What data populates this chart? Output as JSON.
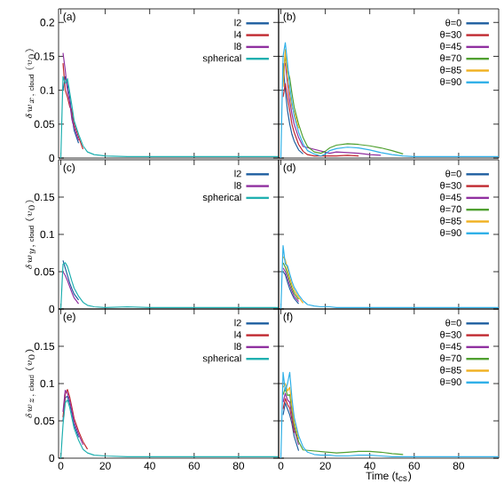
{
  "chart_data": [
    {
      "type": "line",
      "annotations": [
        "(a)"
      ],
      "ylabel": "\\delta w_{x,\\,\\mathrm{cloud}}\\ (v_{0})",
      "legend": "top right",
      "line_style": "solid",
      "tick_labels": "y",
      "xlim": [
        -1,
        98
      ],
      "ylim": [
        0,
        0.22
      ],
      "xticks": [
        0,
        20,
        40,
        60,
        80
      ],
      "yticks": [
        0,
        0.05,
        0.1,
        0.15,
        0.2
      ],
      "x": [
        0,
        1,
        2,
        3,
        4,
        5,
        6,
        8,
        10,
        12,
        15,
        20,
        30,
        40,
        50,
        60,
        70,
        80,
        90,
        98
      ],
      "series": [
        {
          "name": "l2",
          "color": "#1f5fa0",
          "values": [
            null,
            0.1,
            0.12,
            0.108,
            0.09,
            0.063,
            0.041,
            0.022,
            null,
            null,
            null,
            null,
            null,
            null,
            null,
            null,
            null,
            null,
            null,
            null
          ]
        },
        {
          "name": "l4",
          "color": "#c0282f",
          "values": [
            null,
            0.14,
            0.1,
            0.09,
            0.076,
            0.07,
            0.05,
            0.031,
            0.013,
            null,
            null,
            null,
            null,
            null,
            null,
            null,
            null,
            null,
            null,
            null
          ]
        },
        {
          "name": "l8",
          "color": "#9030a0",
          "values": [
            null,
            0.155,
            0.13,
            0.099,
            0.083,
            0.057,
            0.045,
            0.026,
            null,
            null,
            null,
            null,
            null,
            null,
            null,
            null,
            null,
            null,
            null,
            null
          ]
        },
        {
          "name": "spherical",
          "color": "#20b0b0",
          "values": [
            0,
            0.12,
            0.11,
            0.117,
            0.097,
            0.077,
            0.055,
            0.035,
            0.018,
            0.009,
            0.005,
            0.003,
            0.002,
            0.002,
            0.002,
            0.002,
            0.002,
            0.002,
            0.002,
            0.002
          ]
        }
      ]
    },
    {
      "type": "line",
      "annotations": [
        "(b)"
      ],
      "legend": "top right",
      "line_style": "solid",
      "tick_labels": false,
      "xlim": [
        -1,
        98
      ],
      "ylim": [
        0,
        0.22
      ],
      "xticks": [
        0,
        20,
        40,
        60,
        80
      ],
      "yticks": [
        0,
        0.05,
        0.1,
        0.15,
        0.2
      ],
      "x": [
        0,
        1,
        2,
        3,
        4,
        5,
        6,
        8,
        10,
        12,
        15,
        18,
        20,
        22,
        25,
        30,
        35,
        40,
        45,
        50,
        55,
        60,
        70,
        80,
        90,
        98
      ],
      "series": [
        {
          "name": "θ=0",
          "color": "#1f5fa0",
          "values": [
            null,
            0.14,
            0.1,
            0.07,
            0.05,
            0.035,
            0.025,
            0.012,
            0.006,
            null,
            null,
            null,
            null,
            null,
            null,
            null,
            null,
            null,
            null,
            null,
            null,
            null,
            null,
            null,
            null,
            null
          ]
        },
        {
          "name": "θ=30",
          "color": "#c0282f",
          "values": [
            null,
            0.09,
            0.11,
            0.09,
            0.07,
            0.05,
            0.038,
            0.02,
            0.01,
            0.005,
            0.003,
            null,
            null,
            null,
            0.003,
            0.004,
            0.003,
            null,
            null,
            null,
            null,
            null,
            null,
            null,
            null,
            null
          ]
        },
        {
          "name": "θ=45",
          "color": "#9030a0",
          "values": [
            null,
            0.13,
            0.14,
            0.11,
            0.085,
            0.065,
            0.05,
            0.03,
            0.017,
            null,
            null,
            null,
            null,
            0.007,
            0.009,
            0.008,
            0.007,
            0.005,
            0.004,
            null,
            null,
            null,
            null,
            null,
            null,
            null
          ]
        },
        {
          "name": "θ=70",
          "color": "#50a030",
          "values": [
            null,
            0.12,
            0.15,
            0.13,
            0.118,
            0.095,
            0.075,
            0.05,
            0.03,
            0.017,
            0.009,
            0.007,
            0.01,
            0.015,
            0.019,
            0.021,
            0.02,
            0.018,
            0.015,
            0.011,
            0.006,
            null,
            null,
            null,
            null,
            null
          ]
        },
        {
          "name": "θ=85",
          "color": "#f0b020",
          "values": [
            null,
            0.105,
            0.16,
            0.12,
            0.095,
            0.075,
            0.068,
            0.044,
            null,
            null,
            null,
            null,
            null,
            null,
            null,
            null,
            null,
            null,
            null,
            null,
            null,
            null,
            null,
            null,
            null,
            null
          ]
        },
        {
          "name": "θ=90",
          "color": "#30b0e8",
          "values": [
            0,
            0.15,
            0.17,
            0.14,
            0.105,
            0.082,
            0.062,
            0.038,
            0.021,
            0.011,
            0.006,
            0.003,
            0.006,
            0.011,
            0.014,
            0.016,
            0.015,
            0.012,
            0.008,
            0.005,
            0.003,
            0.002,
            0.002,
            0.002,
            0.002,
            0.002
          ]
        }
      ]
    },
    {
      "type": "line",
      "annotations": [
        "(c)"
      ],
      "ylabel": "\\delta w_{y,\\,\\mathrm{cloud}}\\ (v_{0})",
      "legend": "top right",
      "line_style": "solid",
      "tick_labels": "y",
      "xlim": [
        -1,
        98
      ],
      "ylim": [
        0,
        0.2
      ],
      "xticks": [
        0,
        20,
        40,
        60,
        80
      ],
      "yticks": [
        0,
        0.05,
        0.1,
        0.15
      ],
      "x": [
        0,
        1,
        2,
        3,
        4,
        5,
        6,
        8,
        10,
        12,
        15,
        20,
        30,
        40,
        50,
        60,
        70,
        80,
        90,
        98
      ],
      "series": [
        {
          "name": "l2",
          "color": "#1f5fa0",
          "values": [
            null,
            0.065,
            0.055,
            0.045,
            0.035,
            0.027,
            0.02,
            0.012,
            null,
            null,
            null,
            null,
            null,
            null,
            null,
            null,
            null,
            null,
            null,
            null
          ]
        },
        {
          "name": "l8",
          "color": "#9030a0",
          "values": [
            null,
            0.05,
            0.045,
            0.038,
            0.03,
            0.022,
            0.015,
            0.007,
            null,
            null,
            null,
            null,
            null,
            null,
            null,
            null,
            null,
            null,
            null,
            null
          ]
        },
        {
          "name": "spherical",
          "color": "#20b0b0",
          "values": [
            0,
            0.06,
            0.062,
            0.057,
            0.047,
            0.037,
            0.028,
            0.017,
            0.009,
            0.005,
            0.003,
            0.002,
            0.003,
            0.002,
            0.002,
            0.002,
            0.002,
            0.002,
            0.002,
            0.002
          ]
        }
      ]
    },
    {
      "type": "line",
      "annotations": [
        "(d)"
      ],
      "legend": "top right",
      "line_style": "solid",
      "tick_labels": false,
      "xlim": [
        -1,
        98
      ],
      "ylim": [
        0,
        0.2
      ],
      "xticks": [
        0,
        20,
        40,
        60,
        80
      ],
      "yticks": [
        0,
        0.05,
        0.1,
        0.15
      ],
      "x": [
        0,
        1,
        2,
        3,
        4,
        5,
        6,
        8,
        10,
        12,
        15,
        18,
        20,
        22,
        25,
        30,
        35,
        40,
        45,
        50,
        55,
        60,
        70,
        80,
        90,
        98
      ],
      "series": [
        {
          "name": "θ=0",
          "color": "#1f5fa0",
          "values": [
            null,
            0.05,
            0.046,
            0.036,
            0.027,
            0.02,
            0.014,
            0.007,
            null,
            null,
            null,
            null,
            null,
            null,
            null,
            null,
            null,
            null,
            null,
            null,
            null,
            null,
            null,
            null,
            null,
            null
          ]
        },
        {
          "name": "θ=30",
          "color": "#c0282f",
          "values": [
            null,
            null,
            null,
            null,
            null,
            null,
            null,
            null,
            null,
            null,
            null,
            null,
            null,
            null,
            null,
            null,
            null,
            null,
            null,
            null,
            null,
            null,
            null,
            null,
            null,
            null
          ]
        },
        {
          "name": "θ=45",
          "color": "#9030a0",
          "values": [
            null,
            0.055,
            0.05,
            0.041,
            0.032,
            0.024,
            0.017,
            0.01,
            null,
            null,
            null,
            null,
            null,
            null,
            null,
            null,
            null,
            null,
            null,
            null,
            null,
            null,
            null,
            null,
            null,
            null
          ]
        },
        {
          "name": "θ=70",
          "color": "#50a030",
          "values": [
            null,
            0.062,
            0.056,
            0.047,
            0.037,
            0.028,
            0.021,
            0.013,
            null,
            null,
            null,
            null,
            null,
            null,
            null,
            null,
            null,
            null,
            null,
            null,
            null,
            null,
            null,
            null,
            null,
            null
          ]
        },
        {
          "name": "θ=85",
          "color": "#f0b020",
          "values": [
            null,
            0.07,
            0.066,
            0.053,
            0.042,
            0.032,
            0.025,
            0.016,
            0.008,
            null,
            null,
            null,
            null,
            null,
            null,
            null,
            null,
            null,
            null,
            null,
            null,
            null,
            null,
            null,
            null,
            null
          ]
        },
        {
          "name": "θ=90",
          "color": "#30b0e8",
          "values": [
            0,
            0.085,
            0.06,
            0.058,
            0.047,
            0.037,
            0.029,
            0.019,
            0.011,
            0.006,
            0.004,
            0.003,
            0.003,
            0.003,
            0.002,
            0.002,
            0.002,
            0.002,
            0.002,
            0.002,
            0.002,
            0.002,
            0.002,
            0.002,
            0.002,
            0.002
          ]
        }
      ]
    },
    {
      "type": "line",
      "annotations": [
        "(e)"
      ],
      "ylabel": "\\delta w_{z,\\,\\mathrm{cloud}}\\ (v_{0})",
      "legend": "top right",
      "line_style": "solid",
      "xlim": [
        -1,
        98
      ],
      "ylim": [
        0,
        0.2
      ],
      "xticks": [
        0,
        20,
        40,
        60,
        80
      ],
      "yticks": [
        0,
        0.05,
        0.1,
        0.15
      ],
      "x": [
        0,
        1,
        2,
        3,
        4,
        5,
        6,
        8,
        10,
        12,
        15,
        20,
        30,
        40,
        50,
        60,
        70,
        80,
        90,
        98
      ],
      "series": [
        {
          "name": "l2",
          "color": "#1f5fa0",
          "values": [
            null,
            0.05,
            0.081,
            0.083,
            0.073,
            0.059,
            0.044,
            0.028,
            null,
            null,
            null,
            null,
            null,
            null,
            null,
            null,
            null,
            null,
            null,
            null
          ]
        },
        {
          "name": "l4",
          "color": "#c0282f",
          "values": [
            null,
            0.055,
            0.086,
            0.092,
            0.082,
            0.068,
            0.053,
            0.036,
            0.022,
            0.012,
            null,
            null,
            null,
            null,
            null,
            null,
            null,
            null,
            null,
            null
          ]
        },
        {
          "name": "l8",
          "color": "#9030a0",
          "values": [
            null,
            0.062,
            0.091,
            0.087,
            0.077,
            0.063,
            0.048,
            0.032,
            0.018,
            null,
            null,
            null,
            null,
            null,
            null,
            null,
            null,
            null,
            null,
            null
          ]
        },
        {
          "name": "spherical",
          "color": "#20b0b0",
          "values": [
            0,
            0.045,
            0.074,
            0.078,
            0.068,
            0.054,
            0.04,
            0.024,
            0.012,
            0.007,
            0.004,
            0.003,
            0.002,
            0.002,
            0.002,
            0.002,
            0.002,
            0.002,
            0.002,
            0.002
          ]
        }
      ]
    },
    {
      "type": "line",
      "annotations": [
        "(f)"
      ],
      "xlabel": "Time (t$_{cs}$)",
      "legend": "top right",
      "line_style": "solid",
      "tick_labels": "x",
      "xlim": [
        -1,
        98
      ],
      "ylim": [
        0,
        0.2
      ],
      "xticks": [
        0,
        20,
        40,
        60,
        80
      ],
      "yticks": [
        0,
        0.05,
        0.1,
        0.15
      ],
      "x": [
        0,
        1,
        2,
        3,
        4,
        5,
        6,
        8,
        10,
        12,
        15,
        18,
        20,
        22,
        25,
        30,
        35,
        40,
        45,
        50,
        55,
        60,
        70,
        80,
        90,
        98
      ],
      "series": [
        {
          "name": "θ=0",
          "color": "#1f5fa0",
          "values": [
            null,
            0.058,
            0.074,
            0.066,
            0.058,
            0.046,
            0.029,
            0.01,
            null,
            null,
            null,
            null,
            null,
            null,
            null,
            null,
            null,
            null,
            null,
            null,
            null,
            null,
            null,
            null,
            null,
            null
          ]
        },
        {
          "name": "θ=30",
          "color": "#c0282f",
          "values": [
            null,
            0.066,
            0.08,
            0.072,
            0.067,
            0.052,
            0.034,
            null,
            null,
            null,
            null,
            null,
            null,
            null,
            null,
            null,
            null,
            null,
            null,
            null,
            null,
            null,
            null,
            null,
            null,
            null
          ]
        },
        {
          "name": "θ=45",
          "color": "#9030a0",
          "values": [
            null,
            0.075,
            0.087,
            0.078,
            0.075,
            0.058,
            0.039,
            0.018,
            null,
            null,
            null,
            null,
            null,
            null,
            null,
            null,
            null,
            null,
            null,
            null,
            null,
            null,
            null,
            null,
            null,
            null
          ]
        },
        {
          "name": "θ=70",
          "color": "#50a030",
          "values": [
            null,
            0.085,
            0.094,
            0.084,
            0.085,
            0.064,
            0.044,
            0.022,
            0.011,
            null,
            null,
            null,
            null,
            null,
            0.007,
            0.008,
            0.009,
            0.009,
            0.008,
            0.006,
            0.005,
            null,
            null,
            null,
            null,
            null
          ]
        },
        {
          "name": "θ=85",
          "color": "#f0b020",
          "values": [
            null,
            0.095,
            0.1,
            0.09,
            0.095,
            0.07,
            0.049,
            0.026,
            null,
            null,
            null,
            null,
            null,
            null,
            null,
            null,
            null,
            null,
            null,
            null,
            null,
            null,
            null,
            null,
            null,
            null
          ]
        },
        {
          "name": "θ=90",
          "color": "#30b0e8",
          "values": [
            0,
            0.115,
            0.09,
            0.1,
            0.115,
            0.08,
            0.055,
            0.03,
            0.015,
            0.008,
            0.005,
            0.004,
            0.004,
            0.004,
            0.003,
            0.003,
            0.004,
            0.004,
            0.003,
            0.002,
            0.002,
            0.002,
            0.002,
            0.002,
            0.002,
            0.002
          ]
        }
      ]
    }
  ]
}
